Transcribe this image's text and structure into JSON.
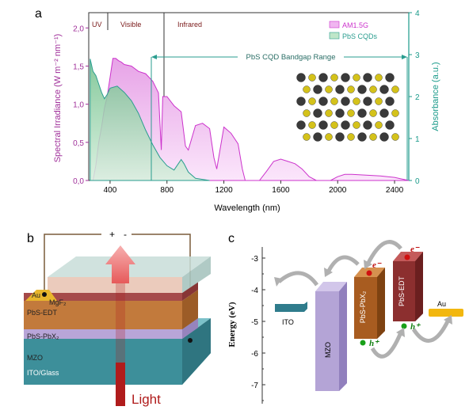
{
  "panel_a": {
    "letter": "a",
    "ylabel_left": "Spectral Irradiance (W m⁻² nm⁻¹)",
    "ylabel_right": "Absorbance (a.u.)",
    "xlabel": "Wavelength (nm)",
    "regions": {
      "uv": "UV",
      "visible": "Visible",
      "infrared": "Infrared"
    },
    "bandgap_label": "PbS CQD Bandgap Range",
    "legend": {
      "am15g": "AM1.5G",
      "pbs": "PbS CQDs"
    },
    "x_ticks": [
      "400",
      "800",
      "1200",
      "1600",
      "2000",
      "2400"
    ],
    "y_ticks_left": [
      "0,0",
      "0,5",
      "1,0",
      "1,5",
      "2,0"
    ],
    "y_ticks_right": [
      "0",
      "1",
      "2",
      "3",
      "4"
    ],
    "colors": {
      "am15g": "#cc33cc",
      "pbs": "#2a9d8f",
      "right_axis": "#1a9a8a"
    }
  },
  "chart_data": {
    "type": "area",
    "xlabel": "Wavelength (nm)",
    "ylabel": "Spectral Irradiance (W m⁻² nm⁻¹)",
    "ylabel_right": "Absorbance (a.u.)",
    "xlim": [
      250,
      2500
    ],
    "ylim": [
      0,
      2.2
    ],
    "ylim_right": [
      0,
      4
    ],
    "legend_position": "top-right",
    "series": [
      {
        "name": "AM1.5G",
        "axis": "left",
        "color": "#cc33cc",
        "x": [
          280,
          300,
          320,
          340,
          360,
          380,
          400,
          420,
          440,
          460,
          480,
          500,
          550,
          600,
          650,
          700,
          740,
          760,
          770,
          800,
          850,
          900,
          930,
          950,
          1000,
          1050,
          1100,
          1130,
          1150,
          1200,
          1250,
          1300,
          1330,
          1350,
          1400,
          1450,
          1500,
          1550,
          1600,
          1650,
          1700,
          1750,
          1800,
          1850,
          1950,
          2000,
          2050,
          2100,
          2200,
          2300,
          2400,
          2450,
          2500
        ],
        "y": [
          0.0,
          0.2,
          0.5,
          0.7,
          0.95,
          1.1,
          1.35,
          1.6,
          1.6,
          1.57,
          1.55,
          1.52,
          1.5,
          1.43,
          1.4,
          1.3,
          1.15,
          0.4,
          1.1,
          1.1,
          0.98,
          0.9,
          0.45,
          0.4,
          0.72,
          0.75,
          0.68,
          0.3,
          0.15,
          0.7,
          0.62,
          0.48,
          0.15,
          0.0,
          0.0,
          0.0,
          0.12,
          0.25,
          0.28,
          0.25,
          0.22,
          0.15,
          0.05,
          0.0,
          0.0,
          0.05,
          0.08,
          0.08,
          0.07,
          0.06,
          0.04,
          0.02,
          0.0
        ]
      },
      {
        "name": "PbS CQDs",
        "axis": "right",
        "color": "#2a9d8f",
        "x": [
          260,
          280,
          300,
          320,
          340,
          360,
          380,
          400,
          450,
          500,
          550,
          600,
          650,
          700,
          750,
          800,
          850,
          880,
          900,
          920,
          950,
          1000,
          1100
        ],
        "y": [
          2.9,
          2.6,
          2.5,
          2.3,
          2.1,
          1.95,
          2.05,
          2.2,
          2.25,
          2.1,
          1.9,
          1.6,
          1.2,
          0.85,
          0.55,
          0.35,
          0.25,
          0.4,
          0.5,
          0.4,
          0.2,
          0.05,
          0.0
        ]
      }
    ]
  },
  "panel_b": {
    "letter": "b",
    "plus": "+",
    "minus": "-",
    "layers": {
      "au": "Au",
      "mgf2": "MgF₂",
      "pbs_edt": "PbS-EDT",
      "pbs_pbx2": "PbS-PbX₂",
      "mzo": "MZO",
      "ito_glass": "ITO/Glass"
    },
    "light_label": "Light"
  },
  "panel_c": {
    "letter": "c",
    "ylabel": "Energy (eV)",
    "y_ticks": [
      "-3",
      "-4",
      "-5",
      "-6",
      "-7"
    ],
    "blocks": {
      "ito": "ITO",
      "mzo": "MZO",
      "pbs_pbx2": "PbS-PbX₂",
      "pbs_edt": "PbS-EDT",
      "au": "Au"
    },
    "carriers": {
      "electron": "e⁻",
      "hole": "h⁺"
    }
  }
}
